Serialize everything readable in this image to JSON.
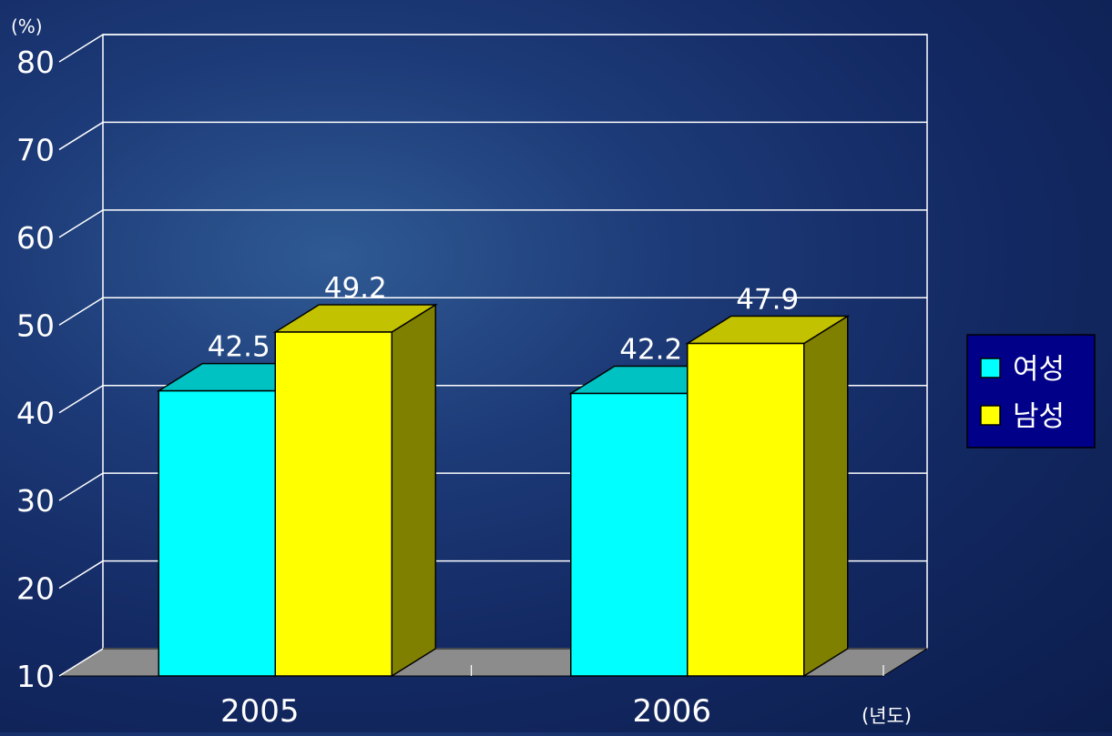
{
  "chart_data": {
    "type": "bar",
    "categories": [
      "2005",
      "2006"
    ],
    "series": [
      {
        "name": "여성",
        "values": [
          42.5,
          42.2
        ],
        "color": "#00ffff"
      },
      {
        "name": "남성",
        "values": [
          49.2,
          47.9
        ],
        "color": "#ffff00"
      }
    ],
    "y_unit": "(%)",
    "x_unit": "(년도)",
    "ylim": [
      10,
      80
    ],
    "yticks": [
      10,
      20,
      30,
      40,
      50,
      60,
      70,
      80
    ],
    "grid": true,
    "legend_position": "right",
    "three_d": true
  }
}
